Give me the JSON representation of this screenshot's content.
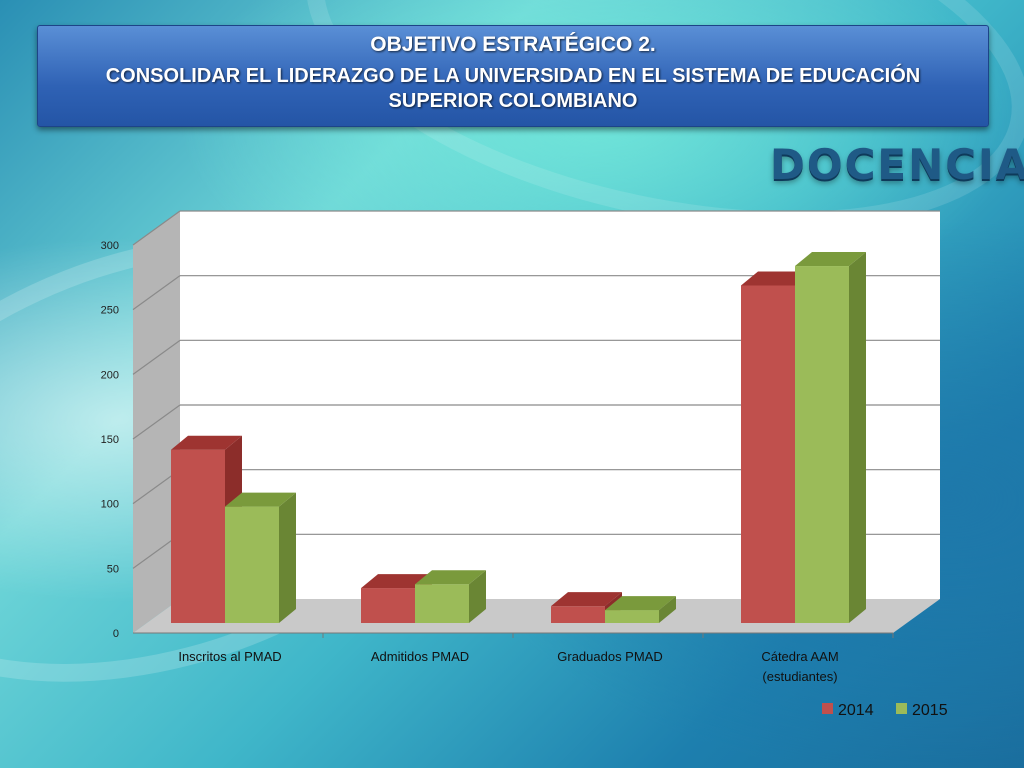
{
  "header": {
    "line1": "OBJETIVO ESTRATÉGICO 2.",
    "line2": "CONSOLIDAR EL LIDERAZGO DE LA UNIVERSIDAD EN EL SISTEMA DE EDUCACIÓN SUPERIOR COLOMBIANO"
  },
  "section_title": "DOCENCIA",
  "chart_data": {
    "type": "bar",
    "style": "3d-clustered",
    "title": "",
    "xlabel": "",
    "ylabel": "",
    "categories": [
      [
        "Inscritos al PMAD"
      ],
      [
        "Admitidos PMAD"
      ],
      [
        "Graduados PMAD"
      ],
      [
        "Cátedra AAM",
        "(estudiantes)"
      ]
    ],
    "series": [
      {
        "name": "2014",
        "values": [
          134,
          27,
          13,
          261
        ],
        "color": "#c0504d",
        "top_color": "#9e3431",
        "side_color": "#8c2d2a"
      },
      {
        "name": "2015",
        "values": [
          90,
          30,
          10,
          276
        ],
        "color": "#9bbb59",
        "top_color": "#7a9a3c",
        "side_color": "#6a8634"
      }
    ],
    "ylim": [
      0,
      300
    ],
    "yticks": [
      0,
      50,
      100,
      150,
      200,
      250,
      300
    ],
    "grid": true,
    "legend": "bottom-right"
  }
}
